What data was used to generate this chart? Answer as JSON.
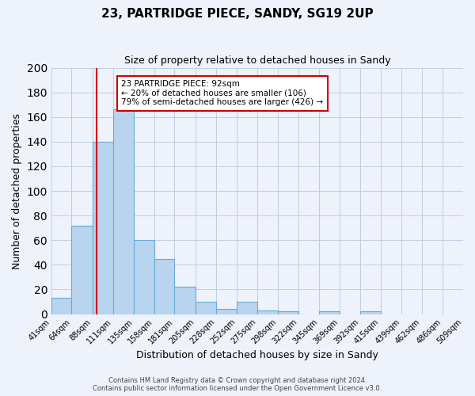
{
  "title": "23, PARTRIDGE PIECE, SANDY, SG19 2UP",
  "subtitle": "Size of property relative to detached houses in Sandy",
  "xlabel": "Distribution of detached houses by size in Sandy",
  "ylabel": "Number of detached properties",
  "bar_values": [
    13,
    72,
    140,
    166,
    60,
    45,
    22,
    10,
    4,
    10,
    3,
    2,
    0,
    2,
    0,
    2
  ],
  "bin_labels": [
    "41sqm",
    "64sqm",
    "88sqm",
    "111sqm",
    "135sqm",
    "158sqm",
    "181sqm",
    "205sqm",
    "228sqm",
    "252sqm",
    "275sqm",
    "298sqm",
    "322sqm",
    "345sqm",
    "369sqm",
    "392sqm",
    "415sqm",
    "439sqm",
    "462sqm",
    "486sqm",
    "509sqm"
  ],
  "bar_color": "#b8d4ee",
  "bar_edge_color": "#6aaad4",
  "vline_x": 92,
  "vline_color": "#cc0000",
  "ylim": [
    0,
    200
  ],
  "yticks": [
    0,
    20,
    40,
    60,
    80,
    100,
    120,
    140,
    160,
    180,
    200
  ],
  "annotation_title": "23 PARTRIDGE PIECE: 92sqm",
  "annotation_line1": "← 20% of detached houses are smaller (106)",
  "annotation_line2": "79% of semi-detached houses are larger (426) →",
  "annotation_box_color": "#ffffff",
  "annotation_box_edge": "#cc0000",
  "bin_width": 23,
  "footer1": "Contains HM Land Registry data © Crown copyright and database right 2024.",
  "footer2": "Contains public sector information licensed under the Open Government Licence v3.0.",
  "background_color": "#eef2fb",
  "grid_color": "#c0cce0"
}
